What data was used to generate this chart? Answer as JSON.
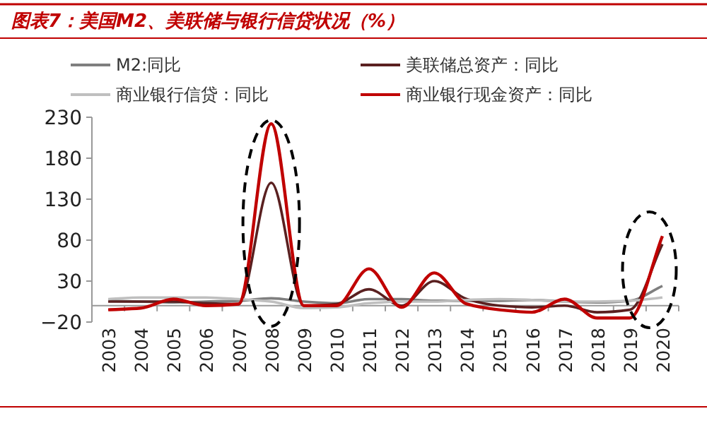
{
  "chart_data": {
    "type": "line",
    "title": "图表7：美国M2、美联储与银行信贷状况（%）",
    "categories": [
      "2003",
      "2004",
      "2005",
      "2006",
      "2007",
      "2008",
      "2009",
      "2010",
      "2011",
      "2012",
      "2013",
      "2014",
      "2015",
      "2016",
      "2017",
      "2018",
      "2019",
      "2020"
    ],
    "series": [
      {
        "name": "M2:同比",
        "color": "#7f7f7f",
        "values": [
          6,
          5,
          4,
          5,
          6,
          9,
          5,
          3,
          8,
          8,
          6,
          6,
          6,
          7,
          5,
          4,
          6,
          24
        ]
      },
      {
        "name": "美联储总资产：同比",
        "color": "#5a2020",
        "values": [
          5,
          5,
          5,
          3,
          2,
          150,
          0,
          2,
          20,
          0,
          30,
          8,
          0,
          -2,
          0,
          -8,
          -5,
          75
        ]
      },
      {
        "name": "商业银行信贷：同比",
        "color": "#bfbfbf",
        "values": [
          8,
          10,
          10,
          10,
          8,
          5,
          -3,
          -2,
          3,
          5,
          5,
          7,
          8,
          7,
          5,
          5,
          6,
          10
        ]
      },
      {
        "name": "商业银行现金资产：同比",
        "color": "#c00000",
        "values": [
          -5,
          -3,
          8,
          0,
          2,
          222,
          0,
          0,
          45,
          -2,
          40,
          2,
          -5,
          -8,
          8,
          -15,
          -15,
          85
        ]
      }
    ],
    "ylim": [
      -20,
      230
    ],
    "yticks": [
      -20,
      30,
      80,
      130,
      180,
      230
    ],
    "grid": false,
    "legend": "top",
    "marker": "none",
    "line_style": "solid"
  }
}
